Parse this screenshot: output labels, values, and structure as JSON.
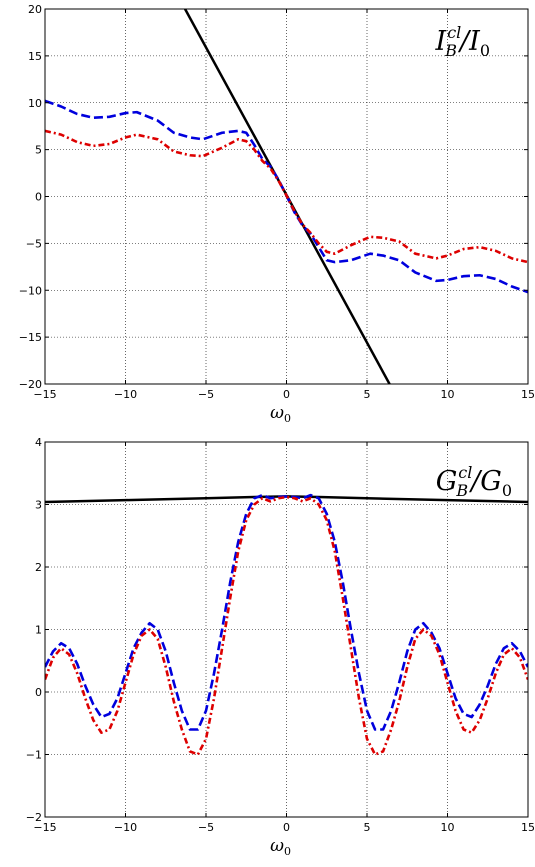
{
  "chart_data": [
    {
      "type": "line",
      "panel_label": {
        "main": "I",
        "sup": "cl",
        "sub": "B",
        "tail": "/I",
        "tail_sub": "0"
      },
      "xlabel": {
        "main": "ω",
        "sub": "0"
      },
      "xlim": [
        -15,
        15
      ],
      "ylim": [
        -20,
        20
      ],
      "xticks": [
        -15,
        -10,
        -5,
        0,
        5,
        10,
        15
      ],
      "yticks": [
        -20,
        -15,
        -10,
        -5,
        0,
        5,
        10,
        15,
        20
      ],
      "xtick_labels": [
        "−15",
        "−10",
        "−5",
        "0",
        "5",
        "10",
        "15"
      ],
      "ytick_labels": [
        "−20",
        "−15",
        "−10",
        "−5",
        "0",
        "5",
        "10",
        "15",
        "20"
      ],
      "grid": true,
      "series": [
        {
          "style": "solid",
          "color": "#000000",
          "x": [
            -6.3,
            6.4
          ],
          "y": [
            20,
            -20
          ]
        },
        {
          "style": "dashed",
          "color": "#0000dd",
          "x": [
            -15,
            -14,
            -13,
            -12,
            -11,
            -10,
            -9.3,
            -8,
            -7,
            -6,
            -5.2,
            -4,
            -3,
            -2.5,
            -2,
            -1.5,
            -1,
            -0.5,
            0,
            0.5,
            1,
            1.5,
            2,
            2.5,
            3,
            4,
            5.2,
            6,
            7,
            8,
            9.3,
            10,
            11,
            12,
            13,
            14,
            15
          ],
          "y": [
            10.2,
            9.6,
            8.8,
            8.4,
            8.5,
            8.9,
            9.0,
            8.1,
            6.8,
            6.3,
            6.1,
            6.8,
            7.0,
            6.8,
            5.5,
            4.0,
            3.2,
            1.8,
            0.1,
            -1.7,
            -3.1,
            -4.0,
            -5.4,
            -6.8,
            -7.0,
            -6.8,
            -6.1,
            -6.3,
            -6.8,
            -8.1,
            -9.0,
            -8.9,
            -8.5,
            -8.4,
            -8.8,
            -9.6,
            -10.2
          ]
        },
        {
          "style": "dashdot",
          "color": "#dd0000",
          "x": [
            -15,
            -14,
            -13,
            -12,
            -11,
            -10,
            -9.3,
            -8,
            -7,
            -6,
            -5.2,
            -4,
            -3,
            -2.5,
            -2,
            -1.5,
            -1,
            -0.5,
            0,
            0.5,
            1,
            1.5,
            2,
            2.5,
            3,
            4,
            5.2,
            6,
            7,
            8,
            9.3,
            10,
            11,
            12,
            13,
            14,
            15
          ],
          "y": [
            7.0,
            6.6,
            5.8,
            5.4,
            5.6,
            6.3,
            6.6,
            6.1,
            4.8,
            4.4,
            4.3,
            5.2,
            6.1,
            5.9,
            5.0,
            3.8,
            3.0,
            1.7,
            0.1,
            -1.6,
            -3.0,
            -3.9,
            -5.0,
            -5.9,
            -6.1,
            -5.2,
            -4.3,
            -4.4,
            -4.8,
            -6.1,
            -6.6,
            -6.3,
            -5.6,
            -5.4,
            -5.8,
            -6.6,
            -7.0
          ]
        }
      ]
    },
    {
      "type": "line",
      "panel_label": {
        "main": "G",
        "sup": "cl",
        "sub": "B",
        "tail": "/G",
        "tail_sub": "0"
      },
      "xlabel": {
        "main": "ω",
        "sub": "0"
      },
      "xlim": [
        -15,
        15
      ],
      "ylim": [
        -2,
        4
      ],
      "xticks": [
        -15,
        -10,
        -5,
        0,
        5,
        10,
        15
      ],
      "yticks": [
        -2,
        -1,
        0,
        1,
        2,
        3,
        4
      ],
      "xtick_labels": [
        "−15",
        "−10",
        "−5",
        "0",
        "5",
        "10",
        "15"
      ],
      "ytick_labels": [
        "−2",
        "−1",
        "0",
        "1",
        "2",
        "3",
        "4"
      ],
      "grid": true,
      "series": [
        {
          "style": "solid",
          "color": "#000000",
          "x": [
            -15,
            -10,
            -5,
            -2,
            0,
            2,
            5,
            10,
            15
          ],
          "y": [
            3.04,
            3.07,
            3.1,
            3.12,
            3.13,
            3.12,
            3.1,
            3.07,
            3.04
          ]
        },
        {
          "style": "dashed",
          "color": "#0000dd",
          "x": [
            -15,
            -14.5,
            -14,
            -13.5,
            -13,
            -12.5,
            -12,
            -11.5,
            -11,
            -10.5,
            -10,
            -9.5,
            -9,
            -8.5,
            -8,
            -7.5,
            -7,
            -6.5,
            -6,
            -5.5,
            -5,
            -4.5,
            -4,
            -3.5,
            -3,
            -2.5,
            -2,
            -1.5,
            -1,
            -0.5,
            0,
            0.5,
            1,
            1.5,
            2,
            2.5,
            3,
            3.5,
            4,
            4.5,
            5,
            5.5,
            6,
            6.5,
            7,
            7.5,
            8,
            8.5,
            9,
            9.5,
            10,
            10.5,
            11,
            11.5,
            12,
            12.5,
            13,
            13.5,
            14,
            14.5,
            15
          ],
          "y": [
            0.4,
            0.65,
            0.78,
            0.7,
            0.45,
            0.1,
            -0.2,
            -0.4,
            -0.35,
            -0.1,
            0.3,
            0.7,
            0.95,
            1.1,
            1.0,
            0.65,
            0.15,
            -0.3,
            -0.6,
            -0.6,
            -0.3,
            0.3,
            1.0,
            1.75,
            2.4,
            2.85,
            3.1,
            3.15,
            3.1,
            3.12,
            3.13,
            3.12,
            3.1,
            3.15,
            3.1,
            2.85,
            2.4,
            1.75,
            1.0,
            0.3,
            -0.3,
            -0.6,
            -0.6,
            -0.3,
            0.15,
            0.65,
            1.0,
            1.1,
            0.95,
            0.7,
            0.3,
            -0.1,
            -0.35,
            -0.4,
            -0.2,
            0.1,
            0.45,
            0.7,
            0.78,
            0.65,
            0.4
          ]
        },
        {
          "style": "dashdot",
          "color": "#dd0000",
          "x": [
            -15,
            -14.5,
            -14,
            -13.5,
            -13,
            -12.5,
            -12,
            -11.5,
            -11,
            -10.5,
            -10,
            -9.5,
            -9,
            -8.5,
            -8,
            -7.5,
            -7,
            -6.5,
            -6,
            -5.5,
            -5,
            -4.5,
            -4,
            -3.5,
            -3,
            -2.5,
            -2,
            -1.5,
            -1,
            -0.5,
            0,
            0.5,
            1,
            1.5,
            2,
            2.5,
            3,
            3.5,
            4,
            4.5,
            5,
            5.5,
            6,
            6.5,
            7,
            7.5,
            8,
            8.5,
            9,
            9.5,
            10,
            10.5,
            11,
            11.5,
            12,
            12.5,
            13,
            13.5,
            14,
            14.5,
            15
          ],
          "y": [
            0.2,
            0.55,
            0.7,
            0.6,
            0.3,
            -0.1,
            -0.45,
            -0.65,
            -0.6,
            -0.3,
            0.15,
            0.6,
            0.9,
            1.0,
            0.85,
            0.4,
            -0.15,
            -0.6,
            -0.95,
            -1.0,
            -0.75,
            -0.1,
            0.7,
            1.5,
            2.25,
            2.75,
            3.0,
            3.1,
            3.05,
            3.1,
            3.12,
            3.1,
            3.05,
            3.1,
            3.0,
            2.75,
            2.25,
            1.5,
            0.7,
            -0.1,
            -0.75,
            -1.0,
            -0.95,
            -0.6,
            -0.15,
            0.4,
            0.85,
            1.0,
            0.9,
            0.6,
            0.15,
            -0.3,
            -0.6,
            -0.65,
            -0.45,
            -0.1,
            0.3,
            0.6,
            0.7,
            0.55,
            0.2
          ]
        }
      ]
    }
  ]
}
